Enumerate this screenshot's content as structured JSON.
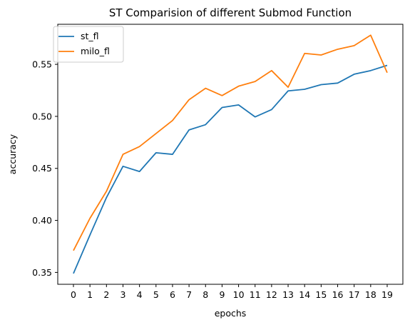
{
  "chart_data": {
    "type": "line",
    "title": "ST Comparision of different Submod Function",
    "xlabel": "epochs",
    "ylabel": "accuracy",
    "x": [
      0,
      1,
      2,
      3,
      4,
      5,
      6,
      7,
      8,
      9,
      10,
      11,
      12,
      13,
      14,
      15,
      16,
      17,
      18,
      19
    ],
    "x_ticks": [
      "0",
      "1",
      "2",
      "3",
      "4",
      "5",
      "6",
      "7",
      "8",
      "9",
      "10",
      "11",
      "12",
      "13",
      "14",
      "15",
      "16",
      "17",
      "18",
      "19"
    ],
    "y_ticks": [
      0.35,
      0.4,
      0.45,
      0.5,
      0.55
    ],
    "y_tick_labels": [
      "0.35",
      "0.40",
      "0.45",
      "0.50",
      "0.55"
    ],
    "xlim": [
      -0.95,
      19.95
    ],
    "ylim": [
      0.3386,
      0.5885
    ],
    "grid": false,
    "legend_position": "top-left",
    "series": [
      {
        "name": "st_fl",
        "color": "#1f77b4",
        "values": [
          0.349,
          0.386,
          0.422,
          0.452,
          0.447,
          0.465,
          0.4635,
          0.487,
          0.492,
          0.5085,
          0.511,
          0.4995,
          0.5065,
          0.5245,
          0.526,
          0.5305,
          0.532,
          0.5405,
          0.544,
          0.549
        ]
      },
      {
        "name": "milo_fl",
        "color": "#ff7f0e",
        "values": [
          0.371,
          0.402,
          0.428,
          0.4635,
          0.471,
          0.4835,
          0.496,
          0.516,
          0.527,
          0.52,
          0.529,
          0.5335,
          0.544,
          0.528,
          0.5605,
          0.559,
          0.5645,
          0.568,
          0.578,
          0.542
        ]
      }
    ]
  }
}
